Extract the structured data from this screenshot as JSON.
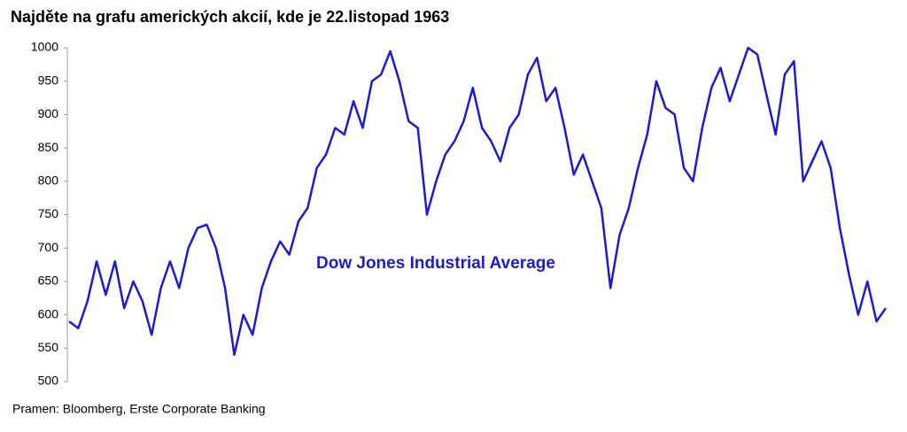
{
  "chart_data": {
    "type": "line",
    "title": "Najděte na grafu amerických akcií, kde je 22.listopad 1963",
    "source": "Pramen: Bloomberg, Erste Corporate Banking",
    "series": [
      {
        "name": "Dow Jones Industrial Average",
        "color": "#1a1adc",
        "values": [
          590,
          580,
          620,
          680,
          630,
          680,
          610,
          650,
          620,
          570,
          640,
          680,
          640,
          700,
          730,
          735,
          700,
          640,
          540,
          600,
          570,
          640,
          680,
          710,
          690,
          740,
          760,
          820,
          840,
          880,
          870,
          920,
          880,
          950,
          960,
          995,
          950,
          890,
          880,
          750,
          800,
          840,
          860,
          890,
          940,
          880,
          860,
          830,
          880,
          900,
          960,
          985,
          920,
          940,
          880,
          810,
          840,
          800,
          760,
          640,
          720,
          760,
          820,
          870,
          950,
          910,
          900,
          820,
          800,
          880,
          940,
          970,
          920,
          960,
          1000,
          990,
          930,
          870,
          960,
          980,
          800,
          830,
          860,
          820,
          730,
          660,
          600,
          650,
          590,
          610
        ]
      }
    ],
    "ylim": [
      500,
      1000
    ],
    "yticks": [
      500,
      550,
      600,
      650,
      700,
      750,
      800,
      850,
      900,
      950,
      1000
    ]
  }
}
